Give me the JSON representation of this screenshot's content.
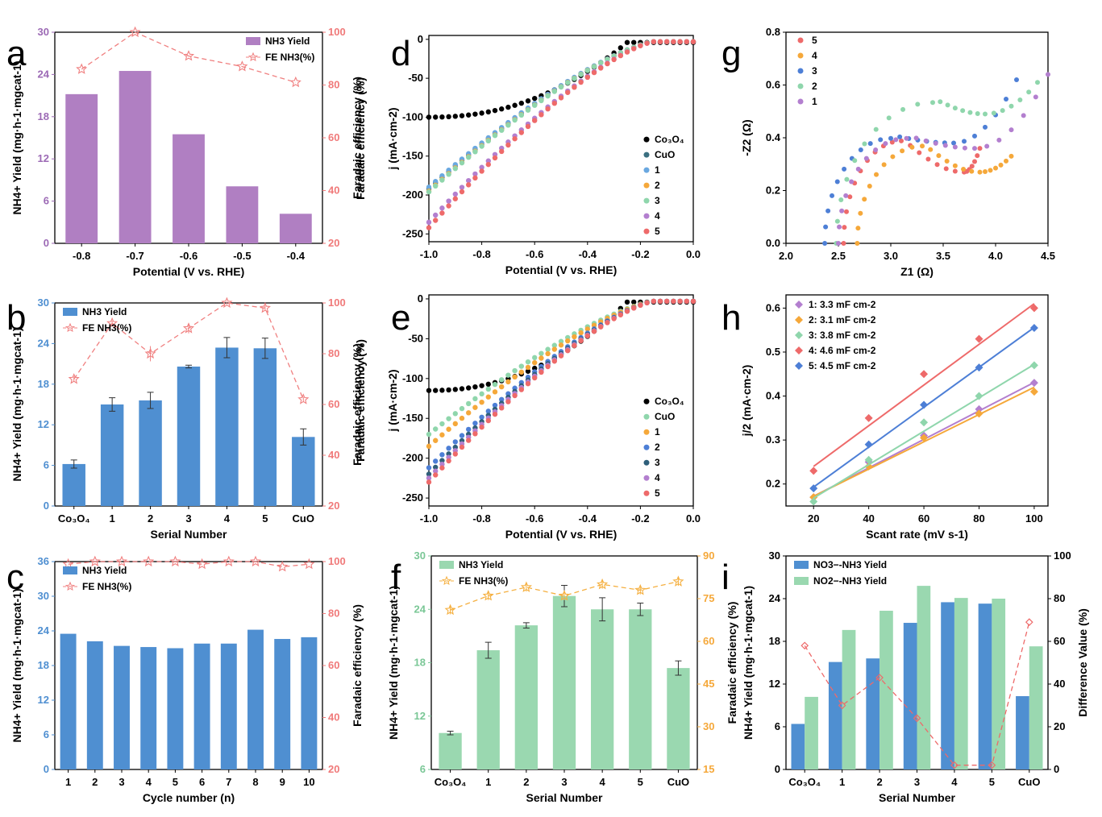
{
  "chart_data": [
    {
      "panel": "a",
      "type": "bar",
      "categories": [
        "-0.8",
        "-0.7",
        "-0.6",
        "-0.5",
        "-0.4"
      ],
      "xlabel": "Potential (V vs. RHE)",
      "ylabel": "NH4+ Yield (mg·h-1·mgcat-1)",
      "ylabel_right": "Faradaic efficiency (%)",
      "ylim": [
        0,
        30
      ],
      "yticks": [
        "0",
        "6",
        "12",
        "18",
        "24",
        "30"
      ],
      "ylim_right": [
        20,
        100
      ],
      "yticks_right": [
        "20",
        "40",
        "60",
        "80",
        "100"
      ],
      "series": [
        {
          "name": "NH3 Yield",
          "kind": "bar",
          "axis": "left",
          "color": "#b07fc2",
          "values": [
            21.2,
            24.5,
            15.5,
            8.1,
            4.2
          ]
        },
        {
          "name": "FE NH3(%)",
          "kind": "line",
          "axis": "right",
          "color": "#f08080",
          "values": [
            86,
            100,
            91,
            87,
            81
          ]
        }
      ],
      "legend": "top-right",
      "colors": {
        "left_axis": "#9c6ab5",
        "right_axis": "#f07a7a"
      }
    },
    {
      "panel": "b",
      "type": "bar",
      "categories": [
        "Co3O4",
        "1",
        "2",
        "3",
        "4",
        "5",
        "CuO"
      ],
      "xlabel": "Serial Number",
      "ylabel": "NH4+ Yield (mg·h-1·mgcat-1)",
      "ylabel_right": "Faradaic efficiency (%)",
      "ylim": [
        0,
        30
      ],
      "yticks": [
        "0",
        "6",
        "12",
        "18",
        "24",
        "30"
      ],
      "ylim_right": [
        20,
        100
      ],
      "yticks_right": [
        "20",
        "40",
        "60",
        "80",
        "100"
      ],
      "series": [
        {
          "name": "NH3 Yield",
          "kind": "bar",
          "axis": "left",
          "color": "#4f8fd1",
          "values": [
            6.2,
            15.0,
            15.6,
            20.6,
            23.4,
            23.3,
            10.2
          ],
          "errors": [
            0.6,
            1.0,
            1.2,
            0.2,
            1.5,
            1.5,
            1.2
          ]
        },
        {
          "name": "FE NH3(%)",
          "kind": "line",
          "axis": "right",
          "color": "#f08080",
          "values": [
            70,
            92,
            80,
            90,
            100,
            98,
            62
          ],
          "errors": [
            1,
            1,
            3,
            2,
            0.5,
            1,
            1
          ]
        }
      ],
      "legend": "top-left",
      "colors": {
        "left_axis": "#4f8fd1",
        "right_axis": "#f07a7a"
      }
    },
    {
      "panel": "c",
      "type": "bar",
      "categories": [
        "1",
        "2",
        "3",
        "4",
        "5",
        "6",
        "7",
        "8",
        "9",
        "10"
      ],
      "xlabel": "Cycle number (n)",
      "ylabel": "NH4+ Yield (mg·h-1·mgcat-1)",
      "ylabel_right": "Faradaic efficiency (%)",
      "ylim": [
        0,
        36
      ],
      "yticks": [
        "0",
        "6",
        "12",
        "18",
        "24",
        "30",
        "36"
      ],
      "ylim_right": [
        20,
        100
      ],
      "yticks_right": [
        "20",
        "40",
        "60",
        "80",
        "100"
      ],
      "series": [
        {
          "name": "NH3 Yield",
          "kind": "bar",
          "axis": "left",
          "color": "#4f8fd1",
          "values": [
            23.5,
            22.2,
            21.4,
            21.2,
            21.0,
            21.8,
            21.8,
            24.2,
            22.6,
            22.9
          ]
        },
        {
          "name": "FE NH3(%)",
          "kind": "line",
          "axis": "right",
          "color": "#f08080",
          "values": [
            99,
            100,
            100,
            100,
            100,
            99,
            100,
            100,
            98,
            99
          ]
        }
      ],
      "legend": "top-left",
      "colors": {
        "left_axis": "#4f8fd1",
        "right_axis": "#f07a7a"
      }
    },
    {
      "panel": "d",
      "type": "scatter",
      "xlabel": "Potential (V vs. RHE)",
      "ylabel": "j (mA·cm-2)",
      "ylabel_left_outer": "Faradaic efficiency (%)",
      "xlim": [
        -1.0,
        0.0
      ],
      "xticks": [
        "-1.0",
        "-0.8",
        "-0.6",
        "-0.4",
        "-0.2",
        "0.0"
      ],
      "ylim": [
        -260,
        5
      ],
      "yticks": [
        "0",
        "-50",
        "-100",
        "-150",
        "-200",
        "-250"
      ],
      "series": [
        {
          "name": "Co3O4",
          "color": "#000000",
          "j_at_minus1": -100,
          "onset": -0.3
        },
        {
          "name": "CuO",
          "color": "#3a6f80",
          "j_at_minus1": -192,
          "onset": -0.2
        },
        {
          "name": "1",
          "color": "#6aa8e0",
          "j_at_minus1": -190,
          "onset": -0.2
        },
        {
          "name": "2",
          "color": "#f5a83a",
          "j_at_minus1": -195,
          "onset": -0.2
        },
        {
          "name": "3",
          "color": "#8fd6ac",
          "j_at_minus1": -196,
          "onset": -0.2
        },
        {
          "name": "4",
          "color": "#b37fcf",
          "j_at_minus1": -235,
          "onset": -0.2
        },
        {
          "name": "5",
          "color": "#ee6a6a",
          "j_at_minus1": -242,
          "onset": -0.2
        }
      ],
      "legend": "right"
    },
    {
      "panel": "e",
      "type": "scatter",
      "xlabel": "Potential (V vs. RHE)",
      "ylabel": "j (mA·cm-2)",
      "ylabel_left_outer": "Faradaic efficiency (%)",
      "xlim": [
        -1.0,
        0.0
      ],
      "xticks": [
        "-1.0",
        "-0.8",
        "-0.6",
        "-0.4",
        "-0.2",
        "0.0"
      ],
      "ylim": [
        -260,
        5
      ],
      "yticks": [
        "0",
        "-50",
        "-100",
        "-150",
        "-200",
        "-250"
      ],
      "series": [
        {
          "name": "Co3O4",
          "color": "#000000",
          "j_at_minus1": -115,
          "onset": -0.3
        },
        {
          "name": "CuO",
          "color": "#8fd6ac",
          "j_at_minus1": -170,
          "onset": -0.2
        },
        {
          "name": "1",
          "color": "#f5a83a",
          "j_at_minus1": -185,
          "onset": -0.2
        },
        {
          "name": "2",
          "color": "#4d7fd6",
          "j_at_minus1": -212,
          "onset": -0.2
        },
        {
          "name": "3",
          "color": "#2f5f7a",
          "j_at_minus1": -220,
          "onset": -0.2
        },
        {
          "name": "4",
          "color": "#b37fcf",
          "j_at_minus1": -225,
          "onset": -0.2
        },
        {
          "name": "5",
          "color": "#ee6a6a",
          "j_at_minus1": -230,
          "onset": -0.2
        }
      ],
      "legend": "right"
    },
    {
      "panel": "f",
      "type": "bar",
      "categories": [
        "Co3O4",
        "1",
        "2",
        "3",
        "4",
        "5",
        "CuO"
      ],
      "xlabel": "Serial Number",
      "ylabel": "NH4+ Yield (mg·h-1·mgcat-1)",
      "ylabel_right": "Faradaic efficiency (%)",
      "ylim": [
        6,
        30
      ],
      "yticks": [
        "6",
        "12",
        "18",
        "24",
        "30"
      ],
      "ylim_right": [
        15,
        90
      ],
      "yticks_right": [
        "15",
        "30",
        "45",
        "60",
        "75",
        "90"
      ],
      "series": [
        {
          "name": "NH3 Yield",
          "kind": "bar",
          "axis": "left",
          "color": "#9ad8b0",
          "values": [
            10.1,
            19.4,
            22.2,
            25.5,
            24.0,
            24.0,
            17.4
          ],
          "errors": [
            0.2,
            0.9,
            0.3,
            1.2,
            1.3,
            0.7,
            0.8
          ]
        },
        {
          "name": "FE NH3(%)",
          "kind": "line",
          "axis": "right",
          "color": "#f5b041",
          "values": [
            71,
            76,
            79,
            76,
            80,
            78,
            81
          ],
          "errors": [
            1.5,
            1.5,
            1.5,
            1.5,
            1.5,
            1.5,
            1.5
          ]
        }
      ],
      "legend": "top-left",
      "colors": {
        "left_axis": "#7ac796",
        "right_axis": "#f5a83a"
      }
    },
    {
      "panel": "g",
      "type": "scatter",
      "xlabel": "Z1 (Ω)",
      "ylabel": "-Z2 (Ω)",
      "xlim": [
        2.0,
        4.5
      ],
      "xticks": [
        "2.0",
        "2.5",
        "3.0",
        "3.5",
        "4.0",
        "4.5"
      ],
      "ylim": [
        0.0,
        0.8
      ],
      "yticks": [
        "0.0",
        "0.2",
        "0.4",
        "0.6",
        "0.8"
      ],
      "series": [
        {
          "name": "5",
          "color": "#ee6a6a",
          "r0": 2.55,
          "peak_x": 3.1,
          "peak_y": 0.4,
          "min_x": 3.7,
          "min_y": 0.27,
          "tail_x": 3.85,
          "tail_y": 0.36
        },
        {
          "name": "4",
          "color": "#f5a83a",
          "r0": 2.68,
          "peak_x": 3.3,
          "peak_y": 0.38,
          "min_x": 3.85,
          "min_y": 0.27,
          "tail_x": 4.15,
          "tail_y": 0.33
        },
        {
          "name": "3",
          "color": "#4d7fd6",
          "r0": 2.37,
          "peak_x": 3.0,
          "peak_y": 0.41,
          "min_x": 3.6,
          "min_y": 0.38,
          "tail_x": 4.2,
          "tail_y": 0.62
        },
        {
          "name": "2",
          "color": "#8fd6ac",
          "r0": 2.48,
          "peak_x": 3.4,
          "peak_y": 0.55,
          "min_x": 3.9,
          "min_y": 0.49,
          "tail_x": 4.4,
          "tail_y": 0.61
        },
        {
          "name": "1",
          "color": "#b37fcf",
          "r0": 2.5,
          "peak_x": 3.15,
          "peak_y": 0.41,
          "min_x": 3.8,
          "min_y": 0.36,
          "tail_x": 4.5,
          "tail_y": 0.64
        }
      ],
      "legend": "top-left"
    },
    {
      "panel": "h",
      "type": "scatter",
      "xlabel": "Scant rate (mV s-1)",
      "ylabel": "j/2 (mA·cm-2)",
      "x": [
        20,
        40,
        60,
        80,
        100
      ],
      "xlim": [
        10,
        105
      ],
      "xticks": [
        "20",
        "40",
        "60",
        "80",
        "100"
      ],
      "ylim": [
        0.15,
        0.63
      ],
      "yticks": [
        "0.2",
        "0.3",
        "0.4",
        "0.5",
        "0.6"
      ],
      "series": [
        {
          "name": "1: 3.3 mF cm-2",
          "color": "#b37fcf",
          "values": [
            0.17,
            0.25,
            0.31,
            0.37,
            0.43
          ],
          "fit": [
            0.172,
            0.431
          ]
        },
        {
          "name": "2: 3.1 mF cm-2",
          "color": "#f5a83a",
          "values": [
            0.17,
            0.24,
            0.305,
            0.36,
            0.41
          ],
          "fit": [
            0.172,
            0.42
          ]
        },
        {
          "name": "3: 3.8 mF cm-2",
          "color": "#8fd6ac",
          "values": [
            0.16,
            0.255,
            0.34,
            0.4,
            0.47
          ],
          "fit": [
            0.168,
            0.472
          ]
        },
        {
          "name": "4: 4.6 mF cm-2",
          "color": "#ee6a6a",
          "values": [
            0.23,
            0.35,
            0.45,
            0.53,
            0.6
          ],
          "fit": [
            0.24,
            0.61
          ]
        },
        {
          "name": "5: 4.5 mF cm-2",
          "color": "#4d7fd6",
          "values": [
            0.19,
            0.29,
            0.38,
            0.465,
            0.555
          ],
          "fit": [
            0.193,
            0.556
          ]
        }
      ],
      "legend": "top-left"
    },
    {
      "panel": "i",
      "type": "bar",
      "categories": [
        "Co3O4",
        "1",
        "2",
        "3",
        "4",
        "5",
        "CuO"
      ],
      "xlabel": "Serial Number",
      "ylabel": "NH4+ Yield (mg·h-1·mgcat-1)",
      "ylabel_right": "Difference Value (%)",
      "ylim": [
        0,
        30
      ],
      "yticks": [
        "0",
        "6",
        "12",
        "18",
        "24",
        "30"
      ],
      "ylim_right": [
        0,
        100
      ],
      "yticks_right": [
        "0",
        "20",
        "40",
        "60",
        "80",
        "100"
      ],
      "series": [
        {
          "name": "NO3−-NH3 Yield",
          "kind": "bar",
          "axis": "left",
          "color": "#4f8fd1",
          "values": [
            6.4,
            15.1,
            15.6,
            20.6,
            23.5,
            23.3,
            10.3
          ]
        },
        {
          "name": "NO2−-NH3 Yield",
          "kind": "bar",
          "axis": "left",
          "color": "#9ad8b0",
          "values": [
            10.2,
            19.6,
            22.3,
            25.8,
            24.1,
            24.0,
            17.3
          ]
        },
        {
          "name": "Difference",
          "kind": "line",
          "axis": "right",
          "color": "#ee6a6a",
          "values": [
            58,
            30,
            43,
            24,
            2,
            2,
            69
          ]
        }
      ],
      "legend": "top-left"
    }
  ]
}
